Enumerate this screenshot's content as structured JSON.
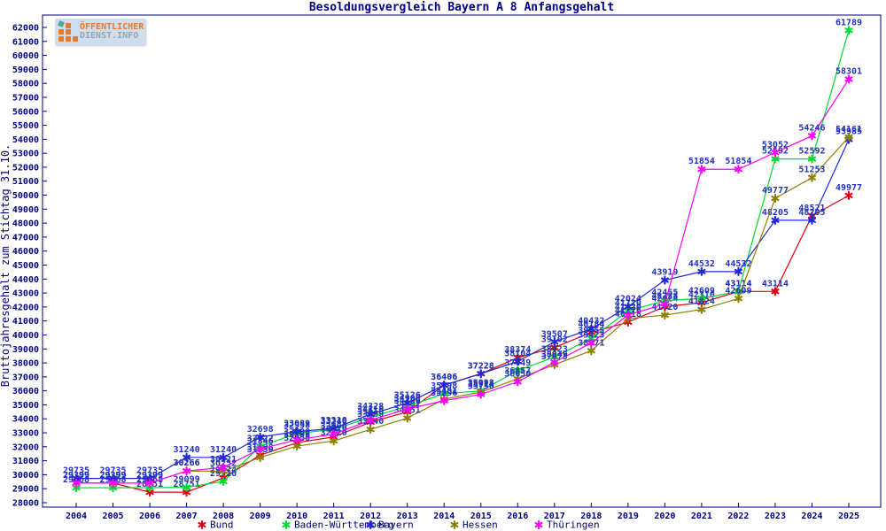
{
  "title": "Besoldungsvergleich Bayern A 8 Anfangsgehalt",
  "logo": {
    "line1": "ÖFFENTLICHER",
    "line2": "DIENST.INFO"
  },
  "colors": {
    "axis": "#000080",
    "tick_label": "#000080",
    "point_label": "#2233bb",
    "title": "#000080",
    "background": "#ffffff"
  },
  "chart_data": {
    "type": "line",
    "title": "Besoldungsvergleich Bayern A 8 Anfangsgehalt",
    "xlabel": "",
    "ylabel": "Bruttojahresgehalt zum Stichtag 31.10.",
    "ylim": [
      28000,
      62000
    ],
    "ytick_step": 1000,
    "grid": false,
    "legend_position": "bottom",
    "x": [
      2004,
      2005,
      2006,
      2007,
      2008,
      2009,
      2010,
      2011,
      2012,
      2013,
      2014,
      2015,
      2016,
      2017,
      2018,
      2019,
      2020,
      2021,
      2022,
      2023,
      2024,
      2025
    ],
    "series": [
      {
        "name": "Bund",
        "color": "#e00010",
        "values": [
          29399,
          29399,
          28751,
          28751,
          29774,
          31398,
          32296,
          32710,
          33760,
          34501,
          36406,
          37228,
          38374,
          39102,
          40184,
          40918,
          42024,
          42310,
          43114,
          43114,
          48521,
          49977
        ]
      },
      {
        "name": "Baden-Württemberg",
        "color": "#00d832",
        "values": [
          29068,
          29068,
          29068,
          29099,
          29520,
          32022,
          32958,
          33240,
          34110,
          34900,
          35798,
          35998,
          37449,
          38423,
          39755,
          41720,
          42455,
          42609,
          43114,
          52592,
          52592,
          61789
        ]
      },
      {
        "name": "Bayern",
        "color": "#2228d8",
        "values": [
          29735,
          29735,
          29735,
          31240,
          31240,
          32698,
          33089,
          33310,
          34328,
          35126,
          36406,
          37228,
          38104,
          39507,
          40432,
          42024,
          43919,
          44532,
          44532,
          48205,
          48205,
          53985
        ]
      },
      {
        "name": "Hessen",
        "color": "#8d8000",
        "values": [
          29399,
          29399,
          29399,
          30266,
          30252,
          31230,
          32050,
          32420,
          33240,
          34051,
          35401,
          35914,
          36857,
          37875,
          38871,
          41176,
          41420,
          41824,
          42609,
          49777,
          51253,
          54161
        ]
      },
      {
        "name": "Thüringen",
        "color": "#ff00ff",
        "values": [
          29399,
          29399,
          29399,
          30266,
          30521,
          31846,
          32500,
          32900,
          33910,
          34700,
          35296,
          35750,
          36650,
          38049,
          39423,
          41420,
          42228,
          51854,
          51854,
          53052,
          54246,
          58301
        ]
      }
    ]
  }
}
